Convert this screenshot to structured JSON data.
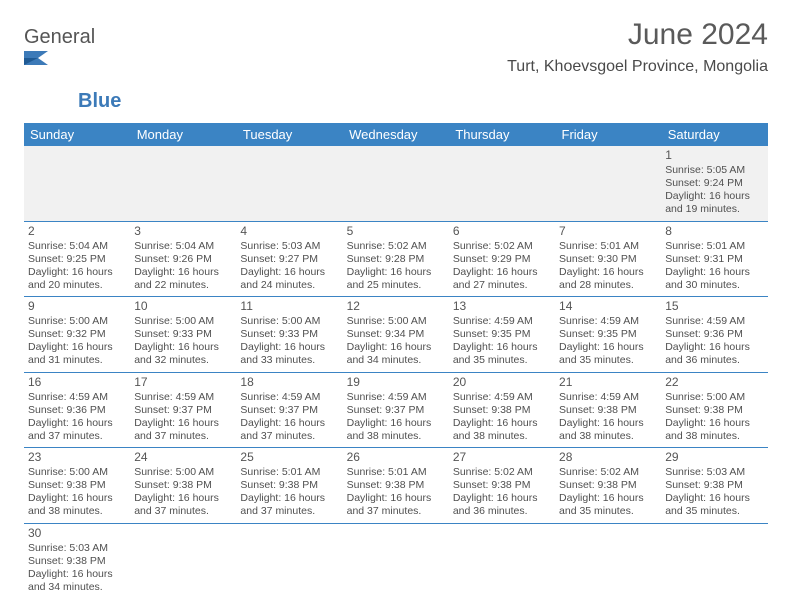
{
  "brand": {
    "name1": "General",
    "name2": "Blue"
  },
  "title": "June 2024",
  "location": "Turt, Khoevsgoel Province, Mongolia",
  "colors": {
    "header_bg": "#3B84C4",
    "header_text": "#ffffff",
    "border": "#3B84C4",
    "text": "#404040",
    "empty_bg": "#f1f1f1"
  },
  "days": [
    "Sunday",
    "Monday",
    "Tuesday",
    "Wednesday",
    "Thursday",
    "Friday",
    "Saturday"
  ],
  "weeks": [
    [
      null,
      null,
      null,
      null,
      null,
      null,
      {
        "d": "1",
        "sr": "5:05 AM",
        "ss": "9:24 PM",
        "dl": "16 hours and 19 minutes."
      }
    ],
    [
      {
        "d": "2",
        "sr": "5:04 AM",
        "ss": "9:25 PM",
        "dl": "16 hours and 20 minutes."
      },
      {
        "d": "3",
        "sr": "5:04 AM",
        "ss": "9:26 PM",
        "dl": "16 hours and 22 minutes."
      },
      {
        "d": "4",
        "sr": "5:03 AM",
        "ss": "9:27 PM",
        "dl": "16 hours and 24 minutes."
      },
      {
        "d": "5",
        "sr": "5:02 AM",
        "ss": "9:28 PM",
        "dl": "16 hours and 25 minutes."
      },
      {
        "d": "6",
        "sr": "5:02 AM",
        "ss": "9:29 PM",
        "dl": "16 hours and 27 minutes."
      },
      {
        "d": "7",
        "sr": "5:01 AM",
        "ss": "9:30 PM",
        "dl": "16 hours and 28 minutes."
      },
      {
        "d": "8",
        "sr": "5:01 AM",
        "ss": "9:31 PM",
        "dl": "16 hours and 30 minutes."
      }
    ],
    [
      {
        "d": "9",
        "sr": "5:00 AM",
        "ss": "9:32 PM",
        "dl": "16 hours and 31 minutes."
      },
      {
        "d": "10",
        "sr": "5:00 AM",
        "ss": "9:33 PM",
        "dl": "16 hours and 32 minutes."
      },
      {
        "d": "11",
        "sr": "5:00 AM",
        "ss": "9:33 PM",
        "dl": "16 hours and 33 minutes."
      },
      {
        "d": "12",
        "sr": "5:00 AM",
        "ss": "9:34 PM",
        "dl": "16 hours and 34 minutes."
      },
      {
        "d": "13",
        "sr": "4:59 AM",
        "ss": "9:35 PM",
        "dl": "16 hours and 35 minutes."
      },
      {
        "d": "14",
        "sr": "4:59 AM",
        "ss": "9:35 PM",
        "dl": "16 hours and 35 minutes."
      },
      {
        "d": "15",
        "sr": "4:59 AM",
        "ss": "9:36 PM",
        "dl": "16 hours and 36 minutes."
      }
    ],
    [
      {
        "d": "16",
        "sr": "4:59 AM",
        "ss": "9:36 PM",
        "dl": "16 hours and 37 minutes."
      },
      {
        "d": "17",
        "sr": "4:59 AM",
        "ss": "9:37 PM",
        "dl": "16 hours and 37 minutes."
      },
      {
        "d": "18",
        "sr": "4:59 AM",
        "ss": "9:37 PM",
        "dl": "16 hours and 37 minutes."
      },
      {
        "d": "19",
        "sr": "4:59 AM",
        "ss": "9:37 PM",
        "dl": "16 hours and 38 minutes."
      },
      {
        "d": "20",
        "sr": "4:59 AM",
        "ss": "9:38 PM",
        "dl": "16 hours and 38 minutes."
      },
      {
        "d": "21",
        "sr": "4:59 AM",
        "ss": "9:38 PM",
        "dl": "16 hours and 38 minutes."
      },
      {
        "d": "22",
        "sr": "5:00 AM",
        "ss": "9:38 PM",
        "dl": "16 hours and 38 minutes."
      }
    ],
    [
      {
        "d": "23",
        "sr": "5:00 AM",
        "ss": "9:38 PM",
        "dl": "16 hours and 38 minutes."
      },
      {
        "d": "24",
        "sr": "5:00 AM",
        "ss": "9:38 PM",
        "dl": "16 hours and 37 minutes."
      },
      {
        "d": "25",
        "sr": "5:01 AM",
        "ss": "9:38 PM",
        "dl": "16 hours and 37 minutes."
      },
      {
        "d": "26",
        "sr": "5:01 AM",
        "ss": "9:38 PM",
        "dl": "16 hours and 37 minutes."
      },
      {
        "d": "27",
        "sr": "5:02 AM",
        "ss": "9:38 PM",
        "dl": "16 hours and 36 minutes."
      },
      {
        "d": "28",
        "sr": "5:02 AM",
        "ss": "9:38 PM",
        "dl": "16 hours and 35 minutes."
      },
      {
        "d": "29",
        "sr": "5:03 AM",
        "ss": "9:38 PM",
        "dl": "16 hours and 35 minutes."
      }
    ],
    [
      {
        "d": "30",
        "sr": "5:03 AM",
        "ss": "9:38 PM",
        "dl": "16 hours and 34 minutes."
      },
      null,
      null,
      null,
      null,
      null,
      null
    ]
  ],
  "labels": {
    "sunrise": "Sunrise:",
    "sunset": "Sunset:",
    "daylight": "Daylight:"
  }
}
